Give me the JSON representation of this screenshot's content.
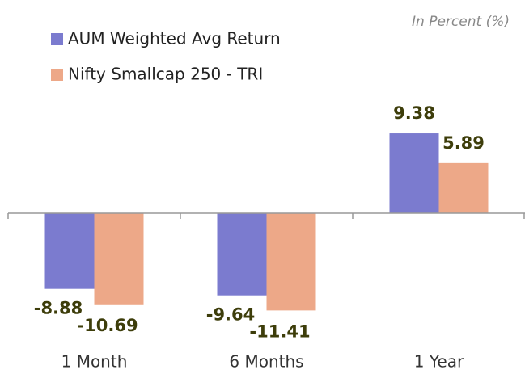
{
  "chart_data": {
    "type": "bar",
    "subtitle": "In Percent (%)",
    "categories": [
      "1 Month",
      "6 Months",
      "1 Year"
    ],
    "series": [
      {
        "name": "AUM Weighted Avg Return",
        "color": "#7b7bcf",
        "values": [
          -8.88,
          -9.64,
          9.38
        ]
      },
      {
        "name": "Nifty Smallcap 250 - TRI",
        "color": "#eda888",
        "values": [
          -10.69,
          -11.41,
          5.89
        ]
      }
    ]
  }
}
